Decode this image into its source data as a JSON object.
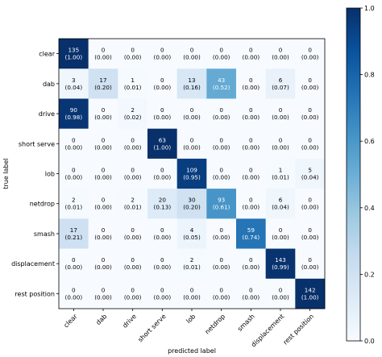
{
  "chart_data": {
    "type": "heatmap",
    "title": "",
    "xlabel": "predicted label",
    "ylabel": "true label",
    "categories": [
      "clear",
      "dab",
      "drive",
      "short serve",
      "lob",
      "netdrop",
      "smash",
      "displacement",
      "rest position"
    ],
    "counts": [
      [
        135,
        0,
        0,
        0,
        0,
        0,
        0,
        0,
        0
      ],
      [
        3,
        17,
        1,
        0,
        13,
        43,
        0,
        6,
        0
      ],
      [
        90,
        0,
        2,
        0,
        0,
        0,
        0,
        0,
        0
      ],
      [
        0,
        0,
        0,
        63,
        0,
        0,
        0,
        0,
        0
      ],
      [
        0,
        0,
        0,
        0,
        109,
        0,
        0,
        1,
        5
      ],
      [
        2,
        0,
        2,
        20,
        30,
        93,
        0,
        6,
        0
      ],
      [
        17,
        0,
        0,
        0,
        4,
        0,
        59,
        0,
        0
      ],
      [
        0,
        0,
        0,
        0,
        2,
        0,
        0,
        143,
        0
      ],
      [
        0,
        0,
        0,
        0,
        0,
        0,
        0,
        0,
        142
      ]
    ],
    "normalized": [
      [
        "1.00",
        "0.00",
        "0.00",
        "0.00",
        "0.00",
        "0.00",
        "0.00",
        "0.00",
        "0.00"
      ],
      [
        "0.04",
        "0.20",
        "0.01",
        "0.00",
        "0.16",
        "0.52",
        "0.00",
        "0.07",
        "0.00"
      ],
      [
        "0.98",
        "0.00",
        "0.02",
        "0.00",
        "0.00",
        "0.00",
        "0.00",
        "0.00",
        "0.00"
      ],
      [
        "0.00",
        "0.00",
        "0.00",
        "1.00",
        "0.00",
        "0.00",
        "0.00",
        "0.00",
        "0.00"
      ],
      [
        "0.00",
        "0.00",
        "0.00",
        "0.00",
        "0.95",
        "0.00",
        "0.00",
        "0.01",
        "0.04"
      ],
      [
        "0.01",
        "0.00",
        "0.01",
        "0.13",
        "0.20",
        "0.61",
        "0.00",
        "0.04",
        "0.00"
      ],
      [
        "0.21",
        "0.00",
        "0.00",
        "0.00",
        "0.05",
        "0.00",
        "0.74",
        "0.00",
        "0.00"
      ],
      [
        "0.00",
        "0.00",
        "0.00",
        "0.00",
        "0.01",
        "0.00",
        "0.00",
        "0.99",
        "0.00"
      ],
      [
        "0.00",
        "0.00",
        "0.00",
        "0.00",
        "0.00",
        "0.00",
        "0.00",
        "0.00",
        "1.00"
      ]
    ],
    "colorbar": {
      "range": [
        0.0,
        1.0
      ],
      "ticks": [
        "0.0",
        "0.2",
        "0.4",
        "0.6",
        "0.8",
        "1.0"
      ],
      "colormap": "Blues"
    }
  }
}
